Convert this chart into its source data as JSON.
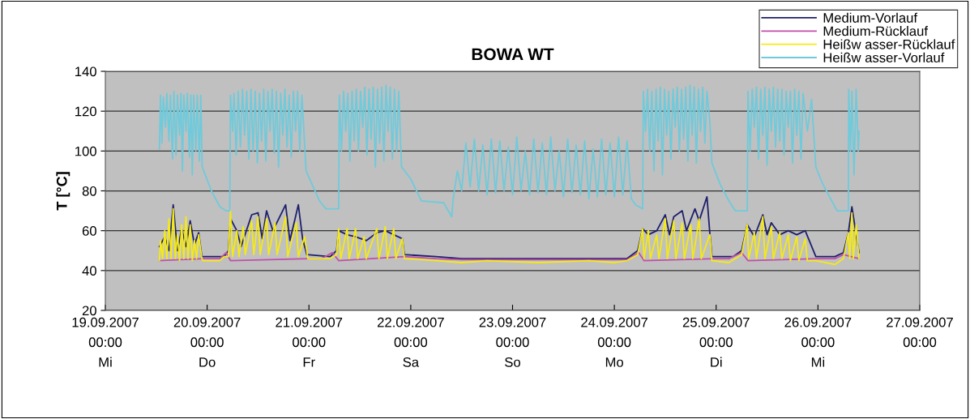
{
  "chart_data": {
    "type": "line",
    "title": "BOWA WT",
    "ylabel": "T [°C]",
    "xlim": [
      "2007-09-19T00:00",
      "2007-09-27T00:00"
    ],
    "xticks": [
      {
        "value": "2007-09-19T00:00",
        "label": "19.09.2007\n00:00\nMi"
      },
      {
        "value": "2007-09-20T00:00",
        "label": "20.09.2007\n00:00\nDo"
      },
      {
        "value": "2007-09-21T00:00",
        "label": "21.09.2007\n00:00\nFr"
      },
      {
        "value": "2007-09-22T00:00",
        "label": "22.09.2007\n00:00\nSa"
      },
      {
        "value": "2007-09-23T00:00",
        "label": "23.09.2007\n00:00\nSo"
      },
      {
        "value": "2007-09-24T00:00",
        "label": "24.09.2007\n00:00\nMo"
      },
      {
        "value": "2007-09-25T00:00",
        "label": "25.09.2007\n00:00\nDi"
      },
      {
        "value": "2007-09-26T00:00",
        "label": "26.09.2007\n00:00\nMi"
      },
      {
        "value": "2007-09-27T00:00",
        "label": "27.09.2007\n00:00\n"
      }
    ],
    "ylim": [
      20,
      140
    ],
    "yticks": [
      20,
      40,
      60,
      80,
      100,
      120,
      140
    ],
    "grid": "y",
    "legend": "top right",
    "marker": "none",
    "line_style": "solid",
    "series": [
      {
        "name": "Medium-Vorlauf",
        "color": "#1f1f6b",
        "x": [
          "2007-09-19T12:45",
          "2007-09-19T14:00",
          "2007-09-19T15:00",
          "2007-09-19T16:00",
          "2007-09-19T17:00",
          "2007-09-19T18:00",
          "2007-09-19T19:00",
          "2007-09-19T20:00",
          "2007-09-19T21:00",
          "2007-09-19T22:00",
          "2007-09-19T22:45",
          "2007-09-20T04:00",
          "2007-09-20T05:00",
          "2007-09-20T05:30",
          "2007-09-20T07:00",
          "2007-09-20T08:00",
          "2007-09-20T10:30",
          "2007-09-20T12:00",
          "2007-09-20T13:00",
          "2007-09-20T14:00",
          "2007-09-20T15:30",
          "2007-09-20T18:30",
          "2007-09-20T19:30",
          "2007-09-20T21:30",
          "2007-09-20T22:30",
          "2007-09-20T23:30",
          "2007-09-21T05:00",
          "2007-09-21T06:30",
          "2007-09-21T07:00",
          "2007-09-21T09:00",
          "2007-09-21T11:00",
          "2007-09-21T13:30",
          "2007-09-21T16:00",
          "2007-09-21T18:00",
          "2007-09-21T20:00",
          "2007-09-21T22:00",
          "2007-09-21T22:30",
          "2007-09-22T06:00",
          "2007-09-22T12:00",
          "2007-09-23T12:00",
          "2007-09-24T03:00",
          "2007-09-24T05:30",
          "2007-09-24T06:40",
          "2007-09-24T08:00",
          "2007-09-24T10:00",
          "2007-09-24T12:00",
          "2007-09-24T13:00",
          "2007-09-24T14:00",
          "2007-09-24T16:00",
          "2007-09-24T17:00",
          "2007-09-24T19:00",
          "2007-09-24T20:00",
          "2007-09-24T21:50",
          "2007-09-24T22:30",
          "2007-09-24T23:00",
          "2007-09-25T04:00",
          "2007-09-25T06:00",
          "2007-09-25T07:20",
          "2007-09-25T09:00",
          "2007-09-25T11:00",
          "2007-09-25T12:00",
          "2007-09-25T13:00",
          "2007-09-25T15:00",
          "2007-09-25T17:00",
          "2007-09-25T19:00",
          "2007-09-25T21:00",
          "2007-09-25T23:30",
          "2007-09-26T04:00",
          "2007-09-26T06:00",
          "2007-09-26T07:10",
          "2007-09-26T08:00",
          "2007-09-26T09:40"
        ],
        "values": [
          52,
          57,
          50,
          73,
          50,
          61,
          52,
          65,
          53,
          59,
          47,
          47,
          50,
          66,
          60,
          52,
          68,
          69,
          56,
          70,
          60,
          73,
          55,
          73,
          56,
          48,
          47,
          50,
          60,
          58,
          57,
          55,
          59,
          60,
          58,
          56,
          48,
          47,
          46,
          46,
          46,
          50,
          61,
          58,
          60,
          68,
          58,
          67,
          70,
          60,
          71,
          65,
          77,
          59,
          47,
          47,
          50,
          63,
          57,
          68,
          58,
          64,
          58,
          60,
          58,
          60,
          47,
          47,
          49,
          59,
          72,
          49
        ]
      },
      {
        "name": "Medium-Rücklauf",
        "color": "#c04fa8",
        "x": [
          "2007-09-19T12:45",
          "2007-09-19T23:00",
          "2007-09-20T03:00",
          "2007-09-20T04:30",
          "2007-09-20T05:30",
          "2007-09-21T00:00",
          "2007-09-21T03:00",
          "2007-09-21T05:30",
          "2007-09-21T07:00",
          "2007-09-21T22:30",
          "2007-09-22T06:00",
          "2007-09-22T12:00",
          "2007-09-24T03:00",
          "2007-09-24T05:45",
          "2007-09-24T07:00",
          "2007-09-25T00:00",
          "2007-09-25T03:00",
          "2007-09-25T06:00",
          "2007-09-25T07:30",
          "2007-09-26T00:00",
          "2007-09-26T04:00",
          "2007-09-26T06:00",
          "2007-09-26T09:40"
        ],
        "values": [
          45,
          46,
          46,
          49,
          45,
          46,
          46,
          49,
          45,
          47,
          46,
          45.5,
          45.5,
          49,
          45,
          46,
          46,
          49,
          45,
          46,
          46,
          48,
          46
        ]
      },
      {
        "name": "Heißw asser-Rücklauf",
        "color": "#f5ea14",
        "x": [
          "2007-09-19T12:45",
          "2007-09-19T13:00",
          "2007-09-19T13:30",
          "2007-09-19T14:00",
          "2007-09-19T14:30",
          "2007-09-19T15:00",
          "2007-09-19T15:30",
          "2007-09-19T16:00",
          "2007-09-19T16:30",
          "2007-09-19T17:00",
          "2007-09-19T17:30",
          "2007-09-19T18:00",
          "2007-09-19T18:30",
          "2007-09-19T19:00",
          "2007-09-19T19:30",
          "2007-09-19T20:00",
          "2007-09-19T20:30",
          "2007-09-19T21:00",
          "2007-09-19T21:30",
          "2007-09-19T22:00",
          "2007-09-19T22:45",
          "2007-09-19T23:00",
          "2007-09-20T03:00",
          "2007-09-20T04:00",
          "2007-09-20T05:00",
          "2007-09-20T05:30",
          "2007-09-20T06:00",
          "2007-09-20T07:00",
          "2007-09-20T07:30",
          "2007-09-20T08:30",
          "2007-09-20T09:00",
          "2007-09-20T10:30",
          "2007-09-20T11:00",
          "2007-09-20T12:00",
          "2007-09-20T12:30",
          "2007-09-20T14:00",
          "2007-09-20T14:30",
          "2007-09-20T16:00",
          "2007-09-20T16:30",
          "2007-09-20T18:30",
          "2007-09-20T19:00",
          "2007-09-20T21:00",
          "2007-09-20T21:30",
          "2007-09-20T23:00",
          "2007-09-20T23:45",
          "2007-09-21T03:00",
          "2007-09-21T05:00",
          "2007-09-21T06:30",
          "2007-09-21T07:00",
          "2007-09-21T07:30",
          "2007-09-21T09:00",
          "2007-09-21T09:30",
          "2007-09-21T11:00",
          "2007-09-21T11:30",
          "2007-09-21T13:00",
          "2007-09-21T13:30",
          "2007-09-21T16:00",
          "2007-09-21T16:30",
          "2007-09-21T18:00",
          "2007-09-21T18:30",
          "2007-09-21T20:00",
          "2007-09-21T20:30",
          "2007-09-21T22:00",
          "2007-09-21T22:30",
          "2007-09-22T06:00",
          "2007-09-22T12:00",
          "2007-09-22T18:00",
          "2007-09-23T06:00",
          "2007-09-23T18:00",
          "2007-09-24T00:00",
          "2007-09-24T03:00",
          "2007-09-24T05:30",
          "2007-09-24T06:40",
          "2007-09-24T07:00",
          "2007-09-24T08:00",
          "2007-09-24T08:30",
          "2007-09-24T10:00",
          "2007-09-24T10:30",
          "2007-09-24T12:00",
          "2007-09-24T12:30",
          "2007-09-24T14:00",
          "2007-09-24T14:30",
          "2007-09-24T16:00",
          "2007-09-24T16:30",
          "2007-09-24T18:00",
          "2007-09-24T18:30",
          "2007-09-24T20:00",
          "2007-09-24T20:30",
          "2007-09-24T22:30",
          "2007-09-24T23:00",
          "2007-09-25T03:00",
          "2007-09-25T06:00",
          "2007-09-25T07:20",
          "2007-09-25T07:40",
          "2007-09-25T09:00",
          "2007-09-25T09:30",
          "2007-09-25T11:00",
          "2007-09-25T11:30",
          "2007-09-25T13:00",
          "2007-09-25T13:30",
          "2007-09-25T15:00",
          "2007-09-25T15:30",
          "2007-09-25T17:00",
          "2007-09-25T17:30",
          "2007-09-25T19:00",
          "2007-09-25T19:30",
          "2007-09-25T21:00",
          "2007-09-25T21:30",
          "2007-09-25T23:30",
          "2007-09-26T04:00",
          "2007-09-26T06:00",
          "2007-09-26T07:10",
          "2007-09-26T07:30",
          "2007-09-26T08:00",
          "2007-09-26T08:20",
          "2007-09-26T09:00",
          "2007-09-26T09:40"
        ],
        "values": [
          45,
          55,
          46,
          60,
          46,
          66,
          46,
          71,
          46,
          58,
          45,
          63,
          46,
          67,
          46,
          63,
          45,
          55,
          46,
          58,
          46,
          45,
          45,
          47,
          47,
          70,
          47,
          60,
          47,
          62,
          48,
          65,
          48,
          67,
          48,
          66,
          48,
          64,
          48,
          67,
          47,
          64,
          47,
          57,
          46,
          46,
          46,
          48,
          61,
          46,
          61,
          46,
          61,
          46,
          57,
          46,
          61,
          46,
          62,
          46,
          61,
          46,
          56,
          46,
          45,
          44,
          45,
          44,
          45,
          44,
          45,
          48,
          61,
          46,
          60,
          46,
          58,
          46,
          66,
          46,
          65,
          46,
          64,
          46,
          63,
          46,
          66,
          46,
          58,
          45,
          44,
          48,
          63,
          46,
          59,
          46,
          67,
          46,
          62,
          46,
          59,
          46,
          58,
          45,
          57,
          45,
          56,
          45,
          45,
          43,
          46,
          59,
          46,
          69,
          46,
          63,
          46
        ]
      },
      {
        "name": "Heißw asser-Vorlauf",
        "color": "#6fcadb",
        "x": [
          "2007-09-19T12:45",
          "2007-09-19T13:00",
          "2007-09-19T13:20",
          "2007-09-19T13:40",
          "2007-09-19T14:10",
          "2007-09-19T14:30",
          "2007-09-19T15:00",
          "2007-09-19T15:20",
          "2007-09-19T15:50",
          "2007-09-19T16:10",
          "2007-09-19T16:40",
          "2007-09-19T17:00",
          "2007-09-19T17:30",
          "2007-09-19T17:50",
          "2007-09-19T18:10",
          "2007-09-19T18:30",
          "2007-09-19T19:00",
          "2007-09-19T19:20",
          "2007-09-19T19:50",
          "2007-09-19T20:10",
          "2007-09-19T20:30",
          "2007-09-19T20:50",
          "2007-09-19T21:20",
          "2007-09-19T21:40",
          "2007-09-19T22:10",
          "2007-09-19T22:30",
          "2007-09-19T22:50",
          "2007-09-20T01:00",
          "2007-09-20T03:00",
          "2007-09-20T04:30",
          "2007-09-20T05:20",
          "2007-09-20T05:30",
          "2007-09-20T06:00",
          "2007-09-20T06:20",
          "2007-09-20T06:50",
          "2007-09-20T07:20",
          "2007-09-20T07:50",
          "2007-09-20T08:20",
          "2007-09-20T08:50",
          "2007-09-20T09:20",
          "2007-09-20T09:50",
          "2007-09-20T10:20",
          "2007-09-20T10:50",
          "2007-09-20T11:20",
          "2007-09-20T11:50",
          "2007-09-20T12:20",
          "2007-09-20T12:50",
          "2007-09-20T13:20",
          "2007-09-20T13:50",
          "2007-09-20T14:20",
          "2007-09-20T14:50",
          "2007-09-20T15:20",
          "2007-09-20T15:50",
          "2007-09-20T16:20",
          "2007-09-20T16:50",
          "2007-09-20T17:20",
          "2007-09-20T17:50",
          "2007-09-20T18:20",
          "2007-09-20T18:50",
          "2007-09-20T19:20",
          "2007-09-20T19:50",
          "2007-09-20T20:20",
          "2007-09-20T20:50",
          "2007-09-20T21:20",
          "2007-09-20T21:50",
          "2007-09-20T22:20",
          "2007-09-20T23:20",
          "2007-09-21T01:00",
          "2007-09-21T02:30",
          "2007-09-21T04:00",
          "2007-09-21T07:00",
          "2007-09-21T07:10",
          "2007-09-21T07:40",
          "2007-09-21T08:10",
          "2007-09-21T08:40",
          "2007-09-21T09:10",
          "2007-09-21T09:40",
          "2007-09-21T10:10",
          "2007-09-21T10:40",
          "2007-09-21T11:10",
          "2007-09-21T11:40",
          "2007-09-21T12:10",
          "2007-09-21T12:40",
          "2007-09-21T13:10",
          "2007-09-21T13:40",
          "2007-09-21T14:10",
          "2007-09-21T14:40",
          "2007-09-21T15:10",
          "2007-09-21T15:40",
          "2007-09-21T16:10",
          "2007-09-21T16:40",
          "2007-09-21T17:10",
          "2007-09-21T17:40",
          "2007-09-21T18:10",
          "2007-09-21T18:40",
          "2007-09-21T19:10",
          "2007-09-21T19:40",
          "2007-09-21T20:10",
          "2007-09-21T20:40",
          "2007-09-21T21:10",
          "2007-09-21T21:50",
          "2007-09-22T00:00",
          "2007-09-22T02:30",
          "2007-09-22T07:45",
          "2007-09-22T09:40",
          "2007-09-22T10:00",
          "2007-09-22T11:00",
          "2007-09-22T12:00",
          "2007-09-22T13:00",
          "2007-09-22T14:00",
          "2007-09-22T15:00",
          "2007-09-22T16:00",
          "2007-09-22T17:00",
          "2007-09-22T18:00",
          "2007-09-22T19:00",
          "2007-09-22T20:00",
          "2007-09-22T21:00",
          "2007-09-22T22:00",
          "2007-09-22T23:00",
          "2007-09-23T00:00",
          "2007-09-23T01:00",
          "2007-09-23T02:00",
          "2007-09-23T03:00",
          "2007-09-23T04:00",
          "2007-09-23T05:00",
          "2007-09-23T06:00",
          "2007-09-23T07:00",
          "2007-09-23T08:00",
          "2007-09-23T09:00",
          "2007-09-23T10:00",
          "2007-09-23T11:00",
          "2007-09-23T12:00",
          "2007-09-23T13:00",
          "2007-09-23T14:00",
          "2007-09-23T15:00",
          "2007-09-23T16:00",
          "2007-09-23T17:00",
          "2007-09-23T18:00",
          "2007-09-23T19:00",
          "2007-09-23T20:00",
          "2007-09-23T21:00",
          "2007-09-23T22:00",
          "2007-09-23T23:00",
          "2007-09-24T00:00",
          "2007-09-24T01:00",
          "2007-09-24T02:00",
          "2007-09-24T03:00",
          "2007-09-24T04:00",
          "2007-09-24T05:00",
          "2007-09-24T06:40",
          "2007-09-24T06:50",
          "2007-09-24T07:20",
          "2007-09-24T07:50",
          "2007-09-24T08:20",
          "2007-09-24T08:50",
          "2007-09-24T09:20",
          "2007-09-24T09:50",
          "2007-09-24T10:20",
          "2007-09-24T10:50",
          "2007-09-24T11:20",
          "2007-09-24T11:50",
          "2007-09-24T12:20",
          "2007-09-24T12:50",
          "2007-09-24T13:20",
          "2007-09-24T13:50",
          "2007-09-24T14:20",
          "2007-09-24T14:50",
          "2007-09-24T15:20",
          "2007-09-24T15:50",
          "2007-09-24T16:20",
          "2007-09-24T16:50",
          "2007-09-24T17:20",
          "2007-09-24T17:50",
          "2007-09-24T18:20",
          "2007-09-24T18:50",
          "2007-09-24T19:20",
          "2007-09-24T19:50",
          "2007-09-24T20:20",
          "2007-09-24T20:50",
          "2007-09-24T21:20",
          "2007-09-24T21:50",
          "2007-09-24T22:30",
          "2007-09-24T23:00",
          "2007-09-25T01:00",
          "2007-09-25T03:00",
          "2007-09-25T04:30",
          "2007-09-25T07:20",
          "2007-09-25T07:30",
          "2007-09-25T08:00",
          "2007-09-25T08:30",
          "2007-09-25T09:00",
          "2007-09-25T09:30",
          "2007-09-25T10:00",
          "2007-09-25T10:30",
          "2007-09-25T11:00",
          "2007-09-25T11:30",
          "2007-09-25T12:00",
          "2007-09-25T12:30",
          "2007-09-25T13:00",
          "2007-09-25T13:30",
          "2007-09-25T14:00",
          "2007-09-25T14:30",
          "2007-09-25T15:00",
          "2007-09-25T15:30",
          "2007-09-25T16:00",
          "2007-09-25T16:30",
          "2007-09-25T17:00",
          "2007-09-25T17:30",
          "2007-09-25T18:00",
          "2007-09-25T18:30",
          "2007-09-25T19:00",
          "2007-09-25T19:30",
          "2007-09-25T20:00",
          "2007-09-25T20:30",
          "2007-09-25T21:30",
          "2007-09-25T22:30",
          "2007-09-25T23:30",
          "2007-09-26T01:00",
          "2007-09-26T03:00",
          "2007-09-26T04:30",
          "2007-09-26T07:10",
          "2007-09-26T07:15",
          "2007-09-26T07:40",
          "2007-09-26T08:00",
          "2007-09-26T08:30",
          "2007-09-26T09:00",
          "2007-09-26T09:30",
          "2007-09-26T09:40"
        ],
        "values": [
          101,
          128,
          104,
          127,
          112,
          129,
          105,
          128,
          96,
          130,
          98,
          128,
          108,
          129,
          90,
          128,
          110,
          129,
          97,
          128,
          88,
          128,
          100,
          128,
          95,
          128,
          92,
          80,
          72,
          70,
          70,
          128,
          110,
          129,
          98,
          130,
          102,
          131,
          108,
          130,
          96,
          131,
          100,
          130,
          94,
          129,
          105,
          131,
          95,
          130,
          110,
          131,
          99,
          130,
          92,
          129,
          108,
          131,
          102,
          128,
          97,
          130,
          110,
          130,
          100,
          128,
          90,
          82,
          75,
          71,
          71,
          128,
          100,
          130,
          110,
          129,
          95,
          130,
          105,
          131,
          100,
          130,
          112,
          132,
          98,
          131,
          106,
          132,
          92,
          131,
          104,
          132,
          95,
          133,
          110,
          132,
          96,
          131,
          100,
          130,
          92,
          86,
          75,
          74,
          67,
          76,
          90,
          80,
          104,
          82,
          106,
          80,
          103,
          78,
          106,
          79,
          105,
          80,
          102,
          78,
          107,
          80,
          100,
          78,
          106,
          79,
          104,
          78,
          107,
          80,
          100,
          77,
          106,
          79,
          103,
          78,
          105,
          76,
          101,
          77,
          106,
          78,
          104,
          77,
          107,
          78,
          105,
          76,
          73,
          71,
          130,
          110,
          131,
          100,
          130,
          90,
          131,
          105,
          132,
          88,
          131,
          108,
          130,
          96,
          131,
          112,
          132,
          100,
          131,
          106,
          132,
          95,
          133,
          108,
          132,
          94,
          131,
          110,
          132,
          104,
          130,
          115,
          94,
          83,
          75,
          70,
          70,
          130,
          100,
          131,
          112,
          132,
          96,
          131,
          108,
          132,
          93,
          131,
          110,
          132,
          102,
          131,
          105,
          131,
          98,
          130,
          112,
          130,
          94,
          131,
          108,
          130,
          96,
          129,
          110,
          126,
          92,
          84,
          76,
          70,
          70,
          131,
          100,
          130,
          88,
          131,
          100,
          110
        ]
      }
    ]
  }
}
